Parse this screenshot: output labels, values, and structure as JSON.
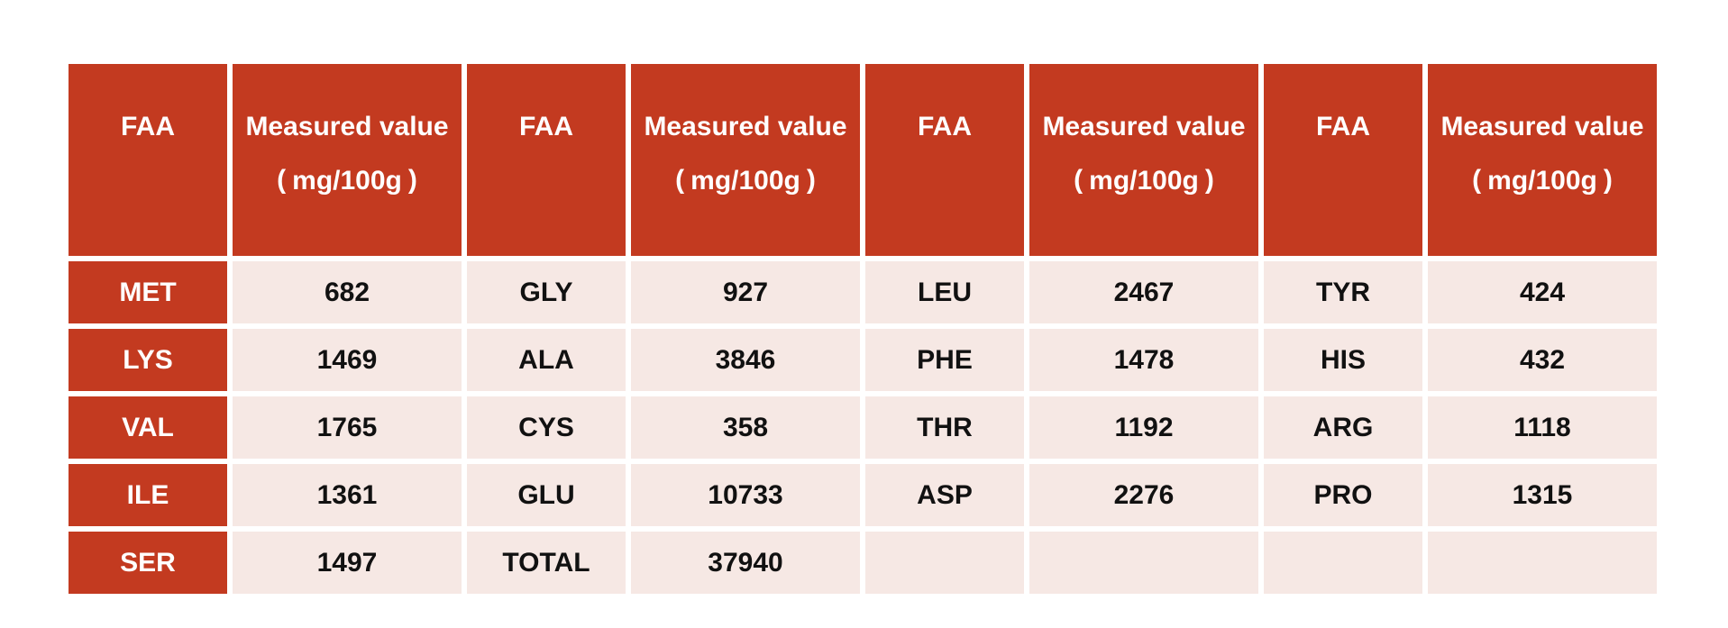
{
  "chart_data": {
    "type": "table",
    "columns": [
      "FAA",
      "Measured value (mg/100g)",
      "FAA",
      "Measured value (mg/100g)",
      "FAA",
      "Measured value (mg/100g)",
      "FAA",
      "Measured value (mg/100g)"
    ],
    "rows": [
      [
        "MET",
        "682",
        "GLY",
        "927",
        "LEU",
        "2467",
        "TYR",
        "424"
      ],
      [
        "LYS",
        "1469",
        "ALA",
        "3846",
        "PHE",
        "1478",
        "HIS",
        "432"
      ],
      [
        "VAL",
        "1765",
        "CYS",
        "358",
        "THR",
        "1192",
        "ARG",
        "1118"
      ],
      [
        "ILE",
        "1361",
        "GLU",
        "10733",
        "ASP",
        "2276",
        "PRO",
        "1315"
      ],
      [
        "SER",
        "1497",
        "TOTAL",
        "37940",
        "",
        "",
        "",
        ""
      ]
    ],
    "unit": "mg/100g",
    "values_by_faa": {
      "MET": 682,
      "LYS": 1469,
      "VAL": 1765,
      "ILE": 1361,
      "SER": 1497,
      "GLY": 927,
      "ALA": 3846,
      "CYS": 358,
      "GLU": 10733,
      "TOTAL": 37940,
      "LEU": 2467,
      "PHE": 1478,
      "THR": 1192,
      "ASP": 2276,
      "TYR": 424,
      "HIS": 432,
      "ARG": 1118,
      "PRO": 1315
    },
    "layout_hints": {
      "grid": "white 6px gaps between cells",
      "header_background": "#C33A20",
      "first_column_background": "#C33A20",
      "body_background": "#F6E8E4"
    }
  },
  "table": {
    "header_pairs": [
      {
        "faa": "FAA",
        "measured": "Measured value",
        "unit_open": "(",
        "unit_text": "mg/100g",
        "unit_close": ")"
      },
      {
        "faa": "FAA",
        "measured": "Measured value",
        "unit_open": "(",
        "unit_text": "mg/100g",
        "unit_close": ")"
      },
      {
        "faa": "FAA",
        "measured": "Measured value",
        "unit_open": "(",
        "unit_text": "mg/100g",
        "unit_close": ")"
      },
      {
        "faa": "FAA",
        "measured": "Measured value",
        "unit_open": "(",
        "unit_text": "mg/100g",
        "unit_close": ")"
      }
    ],
    "rows": [
      {
        "c1": "MET",
        "c2": "682",
        "c3": "GLY",
        "c4": "927",
        "c5": "LEU",
        "c6": "2467",
        "c7": "TYR",
        "c8": "424"
      },
      {
        "c1": "LYS",
        "c2": "1469",
        "c3": "ALA",
        "c4": "3846",
        "c5": "PHE",
        "c6": "1478",
        "c7": "HIS",
        "c8": "432"
      },
      {
        "c1": "VAL",
        "c2": "1765",
        "c3": "CYS",
        "c4": "358",
        "c5": "THR",
        "c6": "1192",
        "c7": "ARG",
        "c8": "1118"
      },
      {
        "c1": "ILE",
        "c2": "1361",
        "c3": "GLU",
        "c4": "10733",
        "c5": "ASP",
        "c6": "2276",
        "c7": "PRO",
        "c8": "1315"
      },
      {
        "c1": "SER",
        "c2": "1497",
        "c3": "TOTAL",
        "c4": "37940",
        "c5": "",
        "c6": "",
        "c7": "",
        "c8": ""
      }
    ]
  },
  "colors": {
    "header_red": "#C33A20",
    "row_label_red": "#C33A20",
    "cell_pink": "#F6E8E4",
    "header_text": "#FFFFFF",
    "cell_text": "#111111",
    "background": "#FFFFFF"
  }
}
